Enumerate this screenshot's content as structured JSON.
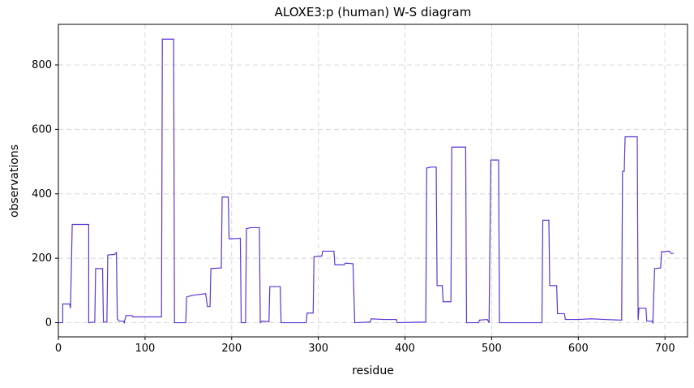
{
  "chart_data": {
    "type": "line",
    "title": "ALOXE3:p (human) W-S diagram",
    "x_label": "residue",
    "y_label": "observations",
    "color": "#5b35d5",
    "grid": true,
    "x": [
      0,
      5,
      5,
      13,
      14,
      16,
      35,
      35,
      42,
      43,
      51,
      52,
      56,
      57,
      65,
      67,
      68,
      70,
      75,
      76,
      78,
      85,
      86,
      119,
      120,
      133,
      134,
      147,
      148,
      155,
      170,
      172,
      175,
      176,
      188,
      189,
      196,
      197,
      210,
      211,
      216,
      217,
      222,
      232,
      233,
      235,
      243,
      244,
      256,
      257,
      286,
      287,
      294,
      295,
      304,
      305,
      318,
      319,
      330,
      331,
      340,
      342,
      360,
      361,
      375,
      390,
      391,
      424,
      425,
      430,
      436,
      437,
      443,
      444,
      453,
      454,
      470,
      471,
      485,
      486,
      495,
      497,
      499,
      508,
      509,
      558,
      559,
      566,
      567,
      575,
      576,
      584,
      585,
      600,
      615,
      630,
      650,
      651,
      653,
      654,
      668,
      669,
      670,
      678,
      679,
      685,
      686,
      688,
      695,
      696,
      705,
      707,
      710
    ],
    "values": [
      0,
      0,
      58,
      58,
      45,
      305,
      305,
      0,
      2,
      168,
      168,
      2,
      2,
      210,
      212,
      218,
      12,
      5,
      5,
      0,
      22,
      22,
      18,
      18,
      880,
      880,
      0,
      0,
      80,
      85,
      90,
      50,
      50,
      168,
      170,
      390,
      390,
      260,
      262,
      0,
      0,
      292,
      295,
      295,
      0,
      5,
      3,
      112,
      112,
      0,
      0,
      30,
      30,
      205,
      207,
      222,
      222,
      180,
      180,
      185,
      183,
      0,
      2,
      12,
      10,
      10,
      0,
      2,
      480,
      483,
      483,
      115,
      115,
      65,
      65,
      545,
      545,
      0,
      0,
      8,
      10,
      0,
      505,
      505,
      0,
      0,
      318,
      318,
      115,
      115,
      28,
      28,
      10,
      10,
      12,
      10,
      8,
      470,
      470,
      577,
      577,
      8,
      45,
      45,
      5,
      5,
      0,
      168,
      170,
      220,
      222,
      215,
      215
    ],
    "xlim": [
      0,
      726
    ],
    "xticks": [
      0,
      100,
      200,
      300,
      400,
      500,
      600,
      700
    ],
    "ylim": [
      -44,
      926
    ],
    "yticks": [
      0,
      200,
      400,
      600,
      800
    ]
  }
}
